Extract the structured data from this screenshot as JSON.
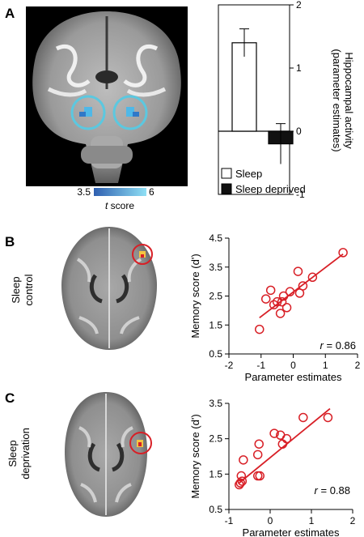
{
  "panels": {
    "a": {
      "letter": "A"
    },
    "b": {
      "letter": "B",
      "condition": [
        "Sleep",
        "control"
      ]
    },
    "c": {
      "letter": "C",
      "condition": [
        "Sleep",
        "deprivation"
      ]
    }
  },
  "colorbar": {
    "min_label": "3.5",
    "max_label": "6",
    "label_italic": "t",
    "label_rest": " score",
    "color_low": "#2f5fb0",
    "color_high": "#8fe0f5"
  },
  "colors": {
    "roi_circle": "#5bc8e0",
    "scatter_red": "#d81f26",
    "activation_yellow": "#f4c542"
  },
  "chart_data": [
    {
      "type": "bar",
      "categories": [
        "Sleep",
        "Sleep deprived"
      ],
      "values": [
        1.4,
        -0.2
      ],
      "errors": [
        0.22,
        0.32
      ],
      "colors": [
        "#ffffff",
        "#111111"
      ],
      "ylabel": [
        "Hippocampal activity",
        "(parameter estimates)"
      ],
      "ylim": [
        -1,
        2
      ],
      "yticks": [
        -1,
        0,
        1,
        2
      ],
      "legend": [
        "Sleep",
        "Sleep deprived"
      ],
      "legend_position": "bottom-left"
    },
    {
      "type": "scatter",
      "xlabel": "Parameter estimates",
      "ylabel": "Memory score (d')",
      "xlim": [
        -2,
        2
      ],
      "ylim": [
        0.5,
        4.5
      ],
      "xticks": [
        -2,
        -1,
        0,
        1,
        2
      ],
      "yticks": [
        0.5,
        1.5,
        2.5,
        3.5,
        4.5
      ],
      "x": [
        -1.05,
        -0.85,
        -0.7,
        -0.6,
        -0.5,
        -0.4,
        -0.3,
        -0.2,
        -0.1,
        0.15,
        0.2,
        0.3,
        0.6,
        1.55,
        -0.35
      ],
      "y": [
        1.35,
        2.4,
        2.7,
        2.2,
        2.3,
        1.9,
        2.5,
        2.1,
        2.65,
        3.35,
        2.6,
        2.85,
        3.15,
        4.0,
        2.3
      ],
      "fit": [
        [
          -1.05,
          1.75
        ],
        [
          1.55,
          3.95
        ]
      ],
      "annotation_italic": "r",
      "annotation_rest": " = 0.86"
    },
    {
      "type": "scatter",
      "xlabel": "Parameter estimates",
      "ylabel": "Memory score (d')",
      "xlim": [
        -1,
        2
      ],
      "ylim": [
        0.5,
        3.5
      ],
      "xticks": [
        -1,
        0,
        1,
        2
      ],
      "yticks": [
        0.5,
        1.5,
        2.5,
        3.5
      ],
      "x": [
        -0.75,
        -0.72,
        -0.7,
        -0.68,
        -0.65,
        -0.3,
        -0.3,
        -0.27,
        -0.25,
        0.1,
        0.25,
        0.3,
        0.4,
        0.8,
        1.4
      ],
      "y": [
        1.2,
        1.25,
        1.45,
        1.3,
        1.9,
        1.45,
        2.05,
        2.35,
        1.45,
        2.65,
        2.6,
        2.35,
        2.5,
        3.1,
        3.1
      ],
      "fit": [
        [
          -0.75,
          1.25
        ],
        [
          1.45,
          3.35
        ]
      ],
      "annotation_italic": "r",
      "annotation_rest": " = 0.88"
    }
  ]
}
